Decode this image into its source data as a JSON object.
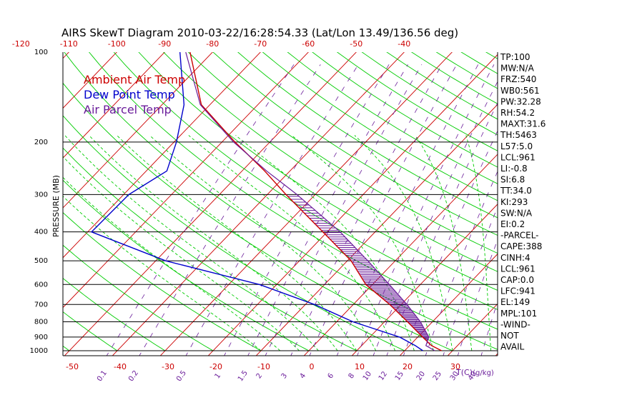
{
  "chart_data": {
    "type": "skew-t",
    "title": "AIRS SkewT Diagram 2010-03-22/16:28:54.33 (Lat/Lon 13.49/136.56 deg)",
    "ylabel": "PRESSURE (MB)",
    "xlabel": "T(C)",
    "mixing_ratio_label": "(g/kg)",
    "pressure_levels": [
      100,
      200,
      300,
      400,
      500,
      600,
      700,
      800,
      900,
      1000
    ],
    "top_temperature_ticks": [
      -120,
      -110,
      -100,
      -90,
      -80,
      -70,
      -60,
      -50,
      -40
    ],
    "bottom_temperature_ticks": [
      -50,
      -40,
      -30,
      -20,
      -10,
      0,
      10,
      20,
      30
    ],
    "mixing_ratio_ticks": [
      "0.1",
      "0.2",
      "0.5",
      "1",
      "1.5",
      "2",
      "3",
      "4",
      "6",
      "8",
      "10",
      "12",
      "15",
      "20",
      "25",
      "30",
      "40"
    ],
    "legend": [
      {
        "name": "Ambient Air Temp",
        "color": "#cc0000"
      },
      {
        "name": "Dew Point Temp",
        "color": "#0000cc"
      },
      {
        "name": "Air Parcel Temp",
        "color": "#6a1c9a"
      }
    ],
    "series": [
      {
        "name": "Ambient Air Temp",
        "color": "#cc0000",
        "points": [
          {
            "p": 100,
            "t": -84.7
          },
          {
            "p": 150,
            "t": -71.8
          },
          {
            "p": 200,
            "t": -57.3
          },
          {
            "p": 250,
            "t": -45.3
          },
          {
            "p": 300,
            "t": -36.1
          },
          {
            "p": 400,
            "t": -20.9
          },
          {
            "p": 500,
            "t": -9.2
          },
          {
            "p": 600,
            "t": -1.4
          },
          {
            "p": 700,
            "t": 7.6
          },
          {
            "p": 800,
            "t": 14.8
          },
          {
            "p": 900,
            "t": 21.0
          },
          {
            "p": 960,
            "t": 24.5
          },
          {
            "p": 1000,
            "t": 27.7
          }
        ]
      },
      {
        "name": "Dew Point Temp",
        "color": "#0000cc",
        "points": [
          {
            "p": 100,
            "t": -86.8
          },
          {
            "p": 150,
            "t": -75.4
          },
          {
            "p": 200,
            "t": -69.5
          },
          {
            "p": 250,
            "t": -65.7
          },
          {
            "p": 300,
            "t": -68.9
          },
          {
            "p": 400,
            "t": -69.2
          },
          {
            "p": 500,
            "t": -47.9
          },
          {
            "p": 600,
            "t": -23.6
          },
          {
            "p": 700,
            "t": -8.1
          },
          {
            "p": 800,
            "t": 3.4
          },
          {
            "p": 900,
            "t": 16.2
          },
          {
            "p": 960,
            "t": 21.1
          },
          {
            "p": 1000,
            "t": 23.8
          }
        ]
      },
      {
        "name": "Air Parcel Temp",
        "color": "#6a1c9a",
        "points": [
          {
            "p": 1000,
            "t": 26.3
          },
          {
            "p": 961,
            "t": 23.4
          },
          {
            "p": 900,
            "t": 22.3
          },
          {
            "p": 800,
            "t": 17.5
          },
          {
            "p": 700,
            "t": 11.2
          },
          {
            "p": 600,
            "t": 3.5
          },
          {
            "p": 500,
            "t": -5.7
          },
          {
            "p": 400,
            "t": -17.3
          },
          {
            "p": 300,
            "t": -33.8
          },
          {
            "p": 250,
            "t": -44.9
          },
          {
            "p": 200,
            "t": -57.6
          },
          {
            "p": 150,
            "t": -72.0
          },
          {
            "p": 100,
            "t": -85.6
          }
        ]
      }
    ],
    "cape_shading": {
      "p_bottom": 941,
      "p_top": 300,
      "color": "#6a1c9a"
    },
    "grid": {
      "isotherm_color": "#cc0000",
      "dry_adiabat_color": "#00cc00",
      "moist_adiabat_color": "#00cc00",
      "mixing_ratio_color": "#6a1c9a",
      "isobar_color": "#000000"
    }
  },
  "stats": [
    "TP:100",
    "MW:N/A",
    "FRZ:540",
    "WB0:561",
    "PW:32.28",
    "RH:54.2",
    "MAXT:31.6",
    "TH:5463",
    "L57:5.0",
    "LCL:961",
    "LI:-0.8",
    "SI:6.8",
    "TT:34.0",
    "KI:293",
    "SW:N/A",
    "EI:0.2",
    "-PARCEL-",
    "CAPE:388",
    "CINH:4",
    "LCL:961",
    "CAP:0.0",
    "LFC:941",
    "EL:149",
    "MPL:101",
    "-WIND-",
    "NOT",
    "AVAIL"
  ]
}
